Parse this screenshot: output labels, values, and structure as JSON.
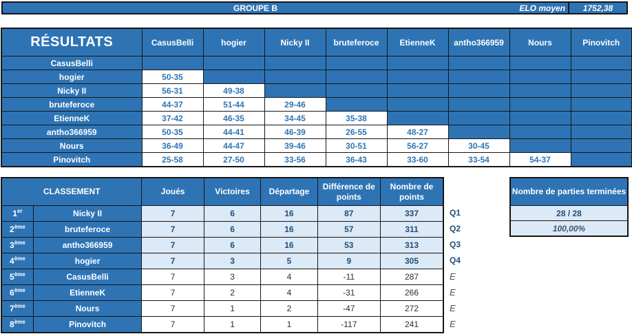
{
  "top_bar": {
    "title": "GROUPE B",
    "elo_label": "ELO moyen",
    "elo_value": "1752,38"
  },
  "results": {
    "title": "RÉSULTATS",
    "players": [
      "CasusBelli",
      "hogier",
      "Nicky II",
      "bruteferoce",
      "EtienneK",
      "antho366959",
      "Nours",
      "Pinovitch"
    ],
    "scores": [
      [],
      [
        "50-35"
      ],
      [
        "56-31",
        "49-38"
      ],
      [
        "44-37",
        "51-44",
        "29-46"
      ],
      [
        "37-42",
        "46-35",
        "34-45",
        "35-38"
      ],
      [
        "50-35",
        "44-41",
        "46-39",
        "26-55",
        "48-27"
      ],
      [
        "36-49",
        "44-47",
        "39-46",
        "30-51",
        "56-27",
        "30-45"
      ],
      [
        "25-58",
        "27-50",
        "33-56",
        "36-43",
        "33-60",
        "33-54",
        "54-37"
      ]
    ]
  },
  "standings": {
    "title": "CLASSEMENT",
    "columns": [
      "Joués",
      "Victoires",
      "Départage",
      "Différence de points",
      "Nombre de points"
    ],
    "rows": [
      {
        "rank": "1",
        "sup": "er",
        "player": "Nicky II",
        "values": [
          "7",
          "6",
          "16",
          "87",
          "337"
        ],
        "tag": "Q1"
      },
      {
        "rank": "2",
        "sup": "ème",
        "player": "bruteferoce",
        "values": [
          "7",
          "6",
          "16",
          "57",
          "311"
        ],
        "tag": "Q2"
      },
      {
        "rank": "3",
        "sup": "ème",
        "player": "antho366959",
        "values": [
          "7",
          "6",
          "16",
          "53",
          "313"
        ],
        "tag": "Q3"
      },
      {
        "rank": "4",
        "sup": "ème",
        "player": "hogier",
        "values": [
          "7",
          "3",
          "5",
          "9",
          "305"
        ],
        "tag": "Q4"
      },
      {
        "rank": "5",
        "sup": "ème",
        "player": "CasusBelli",
        "values": [
          "7",
          "3",
          "4",
          "-11",
          "287"
        ],
        "tag": "E"
      },
      {
        "rank": "6",
        "sup": "ème",
        "player": "EtienneK",
        "values": [
          "7",
          "2",
          "4",
          "-31",
          "266"
        ],
        "tag": "E"
      },
      {
        "rank": "7",
        "sup": "ème",
        "player": "Nours",
        "values": [
          "7",
          "1",
          "2",
          "-47",
          "272"
        ],
        "tag": "E"
      },
      {
        "rank": "8",
        "sup": "ème",
        "player": "Pinovitch",
        "values": [
          "7",
          "1",
          "1",
          "-117",
          "241"
        ],
        "tag": "E"
      }
    ]
  },
  "summary": {
    "title": "Nombre de parties terminées",
    "finished": "28 / 28",
    "percent": "100,00%"
  },
  "colors": {
    "header_blue": "#2e74b5",
    "light_blue": "#dce9f6",
    "dark_blue_text": "#1f4e79",
    "score_blue": "#2e75b6"
  }
}
